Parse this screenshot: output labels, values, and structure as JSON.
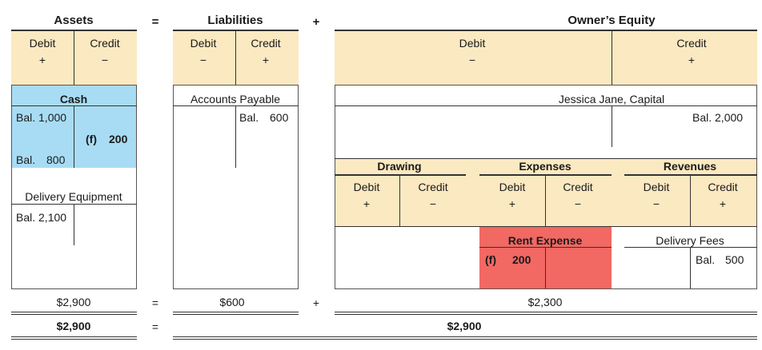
{
  "header": {
    "assets": "Assets",
    "equals": "=",
    "liabilities": "Liabilities",
    "plus": "+",
    "owners_equity": "Owner’s Equity",
    "assets_debit": "Debit",
    "assets_debit_sign": "+",
    "assets_credit": "Credit",
    "assets_credit_sign": "−",
    "liab_debit": "Debit",
    "liab_debit_sign": "−",
    "liab_credit": "Credit",
    "liab_credit_sign": "+",
    "oe_debit": "Debit",
    "oe_debit_sign": "−",
    "oe_credit": "Credit",
    "oe_credit_sign": "+"
  },
  "cash": {
    "title": "Cash",
    "bal_open": "Bal. 1,000",
    "f_label": "(f)",
    "f_amount": "200",
    "bal_close_label": "Bal.",
    "bal_close_amount": "800"
  },
  "delivery_equipment": {
    "title": "Delivery Equipment",
    "bal": "Bal. 2,100"
  },
  "accounts_payable": {
    "title": "Accounts Payable",
    "bal_label": "Bal.",
    "bal_amount": "600"
  },
  "capital": {
    "title": "Jessica Jane, Capital",
    "bal": "Bal. 2,000"
  },
  "sub_headers": {
    "drawing": "Drawing",
    "expenses": "Expenses",
    "revenues": "Revenues",
    "draw_debit": "Debit",
    "draw_debit_sign": "+",
    "draw_credit": "Credit",
    "draw_credit_sign": "−",
    "exp_debit": "Debit",
    "exp_debit_sign": "+",
    "exp_credit": "Credit",
    "exp_credit_sign": "−",
    "rev_debit": "Debit",
    "rev_debit_sign": "−",
    "rev_credit": "Credit",
    "rev_credit_sign": "+"
  },
  "rent_expense": {
    "title": "Rent Expense",
    "f_label": "(f)",
    "f_amount": "200"
  },
  "delivery_fees": {
    "title": "Delivery Fees",
    "bal_label": "Bal.",
    "bal_amount": "500"
  },
  "totals": {
    "assets": "$2,900",
    "eq1": "=",
    "liabilities": "$600",
    "plus": "+",
    "equity": "$2,300",
    "assets_final": "$2,900",
    "eq2": "=",
    "liab_plus_equity": "$2,900"
  },
  "colors": {
    "header_fill": "#fbe9c1",
    "cash_fill": "#a8dcf4",
    "rent_fill": "#f26863"
  }
}
